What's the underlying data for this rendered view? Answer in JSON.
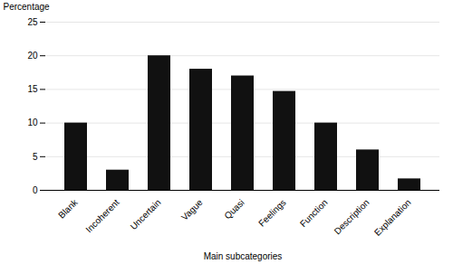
{
  "chart_data": {
    "type": "bar",
    "categories": [
      "Blank",
      "Incoherent",
      "Uncertain",
      "Vague",
      "Quasi",
      "Feelings",
      "Function",
      "Description",
      "Explanation"
    ],
    "values": [
      10.0,
      3.0,
      20.0,
      18.0,
      17.0,
      14.7,
      10.0,
      6.0,
      1.7
    ],
    "color": "#111111",
    "xlabel": "Main subcategories",
    "ylabel": "Percentage",
    "ylim": [
      0,
      25
    ],
    "yticks": [
      0,
      5,
      10,
      15,
      20,
      25
    ],
    "grid": true
  }
}
